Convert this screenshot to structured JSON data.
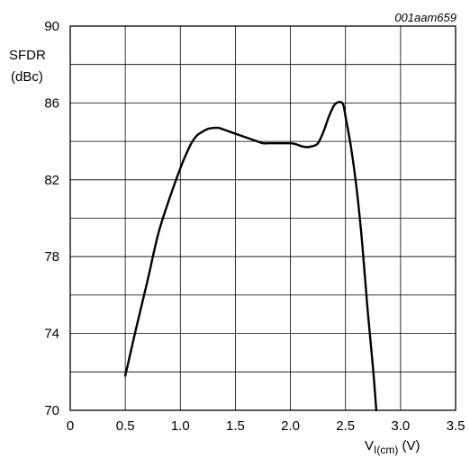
{
  "chart_data": {
    "type": "line",
    "reference": "001aam659",
    "ylabel_line1": "SFDR",
    "ylabel_line2": "(dBc)",
    "xlabel_main": "V",
    "xlabel_sub": "I(cm)",
    "xlabel_unit": " (V)",
    "xlim": [
      0,
      3.5
    ],
    "ylim": [
      70,
      90
    ],
    "x_ticks": [
      0,
      0.5,
      1.0,
      1.5,
      2.0,
      2.5,
      3.0,
      3.5
    ],
    "x_tick_labels": [
      "0",
      "0.5",
      "1.0",
      "1.5",
      "2.0",
      "2.5",
      "3.0",
      "3.5"
    ],
    "x_minor_grid": [
      0.5,
      1.0,
      1.5,
      2.0,
      2.5,
      3.0
    ],
    "y_ticks": [
      70,
      74,
      78,
      82,
      86,
      90
    ],
    "y_tick_labels": [
      "70",
      "74",
      "78",
      "82",
      "86",
      "90"
    ],
    "y_minor_grid": [
      72,
      74,
      76,
      78,
      80,
      82,
      84,
      86,
      88
    ],
    "grid": true,
    "series": [
      {
        "x": [
          0.5,
          0.6,
          0.7,
          0.8,
          0.9,
          1.0,
          1.05,
          1.1,
          1.15,
          1.2,
          1.25,
          1.3,
          1.35,
          1.4,
          1.5,
          1.6,
          1.7,
          1.75,
          1.8,
          1.9,
          2.0,
          2.05,
          2.1,
          2.15,
          2.2,
          2.25,
          2.3,
          2.35,
          2.4,
          2.45,
          2.48,
          2.5,
          2.55,
          2.6,
          2.65,
          2.7,
          2.75,
          2.78
        ],
        "y": [
          71.8,
          74.3,
          76.7,
          79.2,
          81.0,
          82.6,
          83.3,
          83.9,
          84.3,
          84.5,
          84.65,
          84.7,
          84.7,
          84.6,
          84.4,
          84.2,
          84.0,
          83.9,
          83.9,
          83.9,
          83.9,
          83.85,
          83.75,
          83.7,
          83.75,
          83.9,
          84.5,
          85.3,
          85.9,
          86.05,
          85.9,
          85.3,
          83.7,
          81.6,
          78.8,
          75.3,
          72.2,
          70.0
        ]
      }
    ]
  }
}
